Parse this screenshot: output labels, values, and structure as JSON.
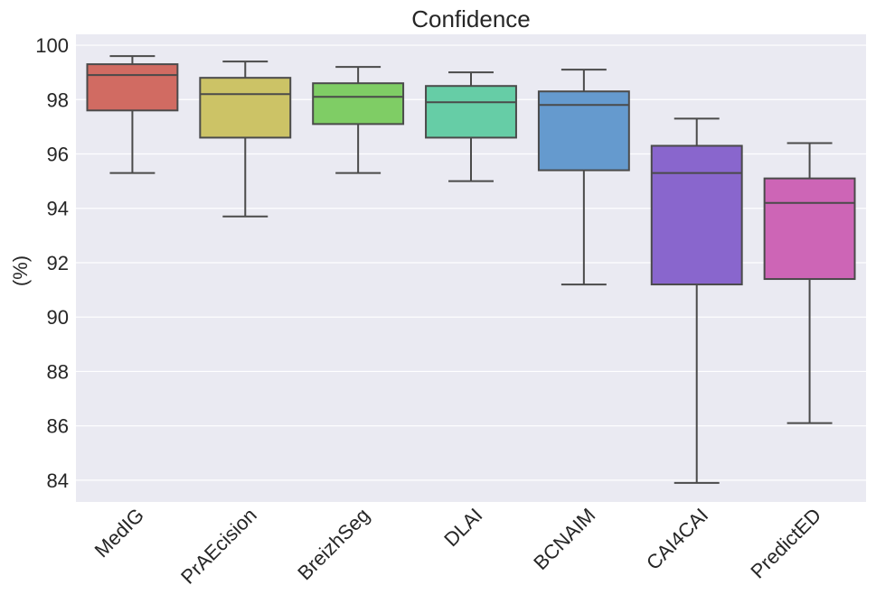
{
  "chart_data": {
    "type": "box",
    "title": "Confidence",
    "xlabel": "",
    "ylabel": "(%)",
    "ylim": [
      83.2,
      100.4
    ],
    "yticks": [
      84,
      86,
      88,
      90,
      92,
      94,
      96,
      98,
      100
    ],
    "grid": true,
    "categories": [
      "MedIG",
      "PrAEcision",
      "BreizhSeg",
      "DLAI",
      "BCNAIM",
      "CAI4CAI",
      "PredictED"
    ],
    "boxes": [
      {
        "name": "MedIG",
        "whislo": 95.3,
        "q1": 97.6,
        "median": 98.9,
        "q3": 99.3,
        "whishi": 99.6,
        "color": "#d16b62"
      },
      {
        "name": "PrAEcision",
        "whislo": 93.7,
        "q1": 96.6,
        "median": 98.2,
        "q3": 98.8,
        "whishi": 99.4,
        "color": "#ccc366"
      },
      {
        "name": "BreizhSeg",
        "whislo": 95.3,
        "q1": 97.1,
        "median": 98.1,
        "q3": 98.6,
        "whishi": 99.2,
        "color": "#7fcd65"
      },
      {
        "name": "DLAI",
        "whislo": 95.0,
        "q1": 96.6,
        "median": 97.9,
        "q3": 98.5,
        "whishi": 99.0,
        "color": "#66cda6"
      },
      {
        "name": "BCNAIM",
        "whislo": 91.2,
        "q1": 95.4,
        "median": 97.8,
        "q3": 98.3,
        "whishi": 99.1,
        "color": "#659ace"
      },
      {
        "name": "CAI4CAI",
        "whislo": 83.9,
        "q1": 91.2,
        "median": 95.3,
        "q3": 96.3,
        "whishi": 97.3,
        "color": "#8966cd"
      },
      {
        "name": "PredictED",
        "whislo": 86.1,
        "q1": 91.4,
        "median": 94.2,
        "q3": 95.1,
        "whishi": 96.4,
        "color": "#cd65b6"
      }
    ],
    "colors": {
      "background": "#eaeaf2",
      "grid": "#ffffff",
      "line": "#4a4a4a",
      "text": "#262626"
    }
  }
}
